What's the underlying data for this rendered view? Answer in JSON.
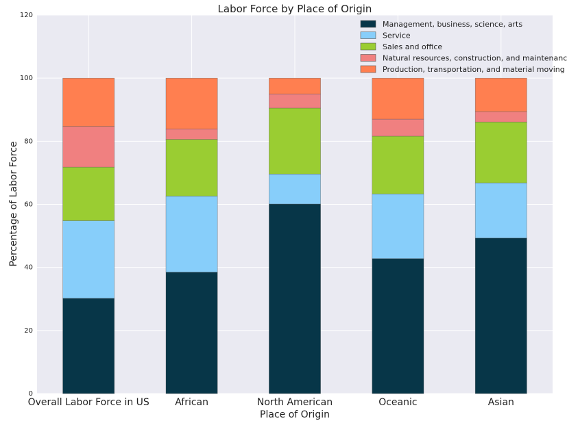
{
  "chart_data": {
    "type": "bar",
    "stacked": true,
    "title": "Labor Force by Place of Origin",
    "xlabel": "Place of Origin",
    "ylabel": "Percentage of Labor Force",
    "ylim": [
      0,
      120
    ],
    "yticks": [
      0,
      20,
      40,
      60,
      80,
      100,
      120
    ],
    "grid": true,
    "legend_position": "top-right",
    "categories": [
      "Overall Labor Force in US",
      "African",
      "North American",
      "Oceanic",
      "Asian"
    ],
    "series": [
      {
        "name": "Management, business, science, arts",
        "color": "#073648",
        "values": [
          30.2,
          38.5,
          60.1,
          42.8,
          49.3
        ]
      },
      {
        "name": "Service",
        "color": "#87cefa",
        "values": [
          24.6,
          24.1,
          9.5,
          20.5,
          17.5
        ]
      },
      {
        "name": "Sales and office",
        "color": "#9acd32",
        "values": [
          17.0,
          18.0,
          20.9,
          18.3,
          19.3
        ]
      },
      {
        "name": "Natural resources, construction, and maintenance",
        "color": "#f08080",
        "values": [
          12.9,
          3.3,
          4.5,
          5.4,
          3.3
        ]
      },
      {
        "name": "Production, transportation, and material moving",
        "color": "#ff7f50",
        "values": [
          15.3,
          16.1,
          5.0,
          13.0,
          10.6
        ]
      }
    ]
  }
}
